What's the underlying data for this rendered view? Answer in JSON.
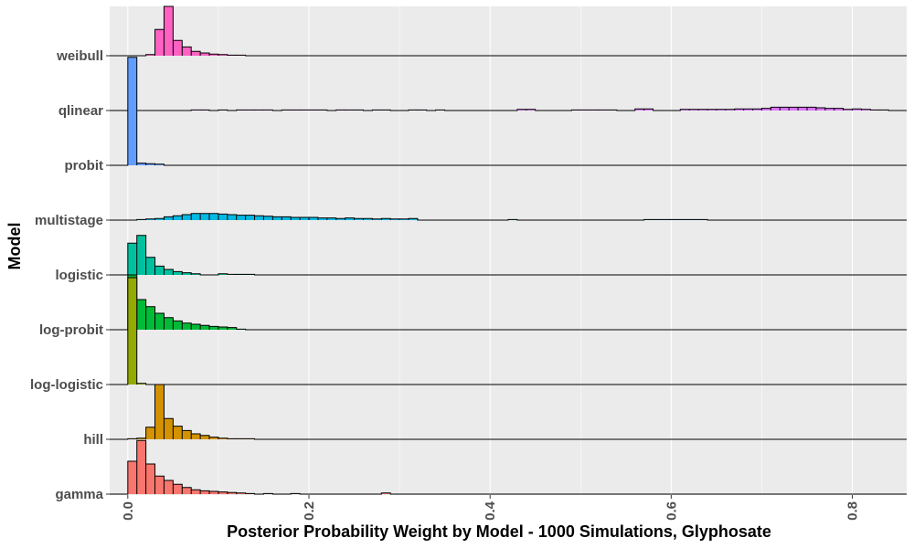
{
  "chart_data": {
    "type": "ridgeline-histogram",
    "xlabel": "Posterior Probability Weight by Model - 1000 Simulations, Glyphosate",
    "ylabel": "Model",
    "xlim": [
      -0.02,
      0.86
    ],
    "x_ticks": [
      0.0,
      0.2,
      0.4,
      0.6,
      0.8
    ],
    "x_tick_labels": [
      "0.0",
      "0.2",
      "0.4",
      "0.6",
      "0.8"
    ],
    "bin_width": 0.01,
    "grid": true,
    "background": "#EBEBEB",
    "gridline_color": "#FFFFFF",
    "categories": [
      "gamma",
      "hill",
      "log-logistic",
      "log-probit",
      "logistic",
      "multistage",
      "probit",
      "qlinear",
      "weibull"
    ],
    "series": [
      {
        "name": "gamma",
        "color": "#F8766D",
        "bins": [
          [
            0.0,
            0.6
          ],
          [
            0.01,
            0.98
          ],
          [
            0.02,
            0.55
          ],
          [
            0.03,
            0.33
          ],
          [
            0.04,
            0.25
          ],
          [
            0.05,
            0.18
          ],
          [
            0.06,
            0.12
          ],
          [
            0.07,
            0.08
          ],
          [
            0.08,
            0.06
          ],
          [
            0.09,
            0.05
          ],
          [
            0.1,
            0.04
          ],
          [
            0.11,
            0.03
          ],
          [
            0.12,
            0.02
          ],
          [
            0.13,
            0.01
          ],
          [
            0.15,
            0.01
          ],
          [
            0.18,
            0.01
          ],
          [
            0.28,
            0.02
          ]
        ]
      },
      {
        "name": "hill",
        "color": "#D39200",
        "bins": [
          [
            0.0,
            0.01
          ],
          [
            0.01,
            0.02
          ],
          [
            0.02,
            0.22
          ],
          [
            0.03,
            1.0
          ],
          [
            0.04,
            0.38
          ],
          [
            0.05,
            0.24
          ],
          [
            0.06,
            0.16
          ],
          [
            0.07,
            0.1
          ],
          [
            0.08,
            0.07
          ],
          [
            0.09,
            0.04
          ],
          [
            0.1,
            0.02
          ],
          [
            0.11,
            0.01
          ],
          [
            0.12,
            0.01
          ],
          [
            0.13,
            0.01
          ]
        ]
      },
      {
        "name": "log-logistic",
        "color": "#93AA00",
        "bins": [
          [
            0.0,
            1.95
          ],
          [
            0.01,
            0.02
          ]
        ]
      },
      {
        "name": "log-probit",
        "color": "#00BA38",
        "bins": [
          [
            0.0,
            1.0
          ],
          [
            0.01,
            0.55
          ],
          [
            0.02,
            0.42
          ],
          [
            0.03,
            0.3
          ],
          [
            0.04,
            0.22
          ],
          [
            0.05,
            0.16
          ],
          [
            0.06,
            0.12
          ],
          [
            0.07,
            0.1
          ],
          [
            0.08,
            0.08
          ],
          [
            0.09,
            0.06
          ],
          [
            0.1,
            0.05
          ],
          [
            0.11,
            0.04
          ],
          [
            0.12,
            0.01
          ]
        ]
      },
      {
        "name": "logistic",
        "color": "#00C19F",
        "bins": [
          [
            0.0,
            0.58
          ],
          [
            0.01,
            0.72
          ],
          [
            0.02,
            0.32
          ],
          [
            0.03,
            0.16
          ],
          [
            0.04,
            0.1
          ],
          [
            0.05,
            0.06
          ],
          [
            0.06,
            0.04
          ],
          [
            0.07,
            0.02
          ],
          [
            0.1,
            0.02
          ],
          [
            0.11,
            0.01
          ],
          [
            0.12,
            0.01
          ],
          [
            0.13,
            0.01
          ]
        ]
      },
      {
        "name": "multistage",
        "color": "#00B9E3",
        "bins": [
          [
            0.01,
            0.01
          ],
          [
            0.02,
            0.02
          ],
          [
            0.03,
            0.03
          ],
          [
            0.04,
            0.06
          ],
          [
            0.05,
            0.08
          ],
          [
            0.06,
            0.1
          ],
          [
            0.07,
            0.12
          ],
          [
            0.08,
            0.12
          ],
          [
            0.09,
            0.12
          ],
          [
            0.1,
            0.11
          ],
          [
            0.11,
            0.1
          ],
          [
            0.12,
            0.09
          ],
          [
            0.13,
            0.09
          ],
          [
            0.14,
            0.08
          ],
          [
            0.15,
            0.07
          ],
          [
            0.16,
            0.06
          ],
          [
            0.17,
            0.06
          ],
          [
            0.18,
            0.05
          ],
          [
            0.19,
            0.05
          ],
          [
            0.2,
            0.05
          ],
          [
            0.21,
            0.04
          ],
          [
            0.22,
            0.04
          ],
          [
            0.23,
            0.03
          ],
          [
            0.24,
            0.04
          ],
          [
            0.25,
            0.03
          ],
          [
            0.26,
            0.03
          ],
          [
            0.27,
            0.02
          ],
          [
            0.28,
            0.03
          ],
          [
            0.29,
            0.02
          ],
          [
            0.3,
            0.02
          ],
          [
            0.31,
            0.03
          ],
          [
            0.42,
            0.01
          ],
          [
            0.57,
            0.01
          ],
          [
            0.58,
            0.01
          ],
          [
            0.59,
            0.01
          ],
          [
            0.6,
            0.01
          ],
          [
            0.61,
            0.01
          ],
          [
            0.62,
            0.01
          ],
          [
            0.63,
            0.01
          ]
        ]
      },
      {
        "name": "probit",
        "color": "#619CFF",
        "bins": [
          [
            0.0,
            1.97
          ],
          [
            0.01,
            0.04
          ],
          [
            0.02,
            0.03
          ],
          [
            0.03,
            0.02
          ]
        ]
      },
      {
        "name": "qlinear",
        "color": "#DB72FB",
        "bins": [
          [
            0.07,
            0.01
          ],
          [
            0.08,
            0.01
          ],
          [
            0.1,
            0.01
          ],
          [
            0.12,
            0.01
          ],
          [
            0.13,
            0.01
          ],
          [
            0.14,
            0.01
          ],
          [
            0.15,
            0.01
          ],
          [
            0.17,
            0.01
          ],
          [
            0.18,
            0.01
          ],
          [
            0.19,
            0.01
          ],
          [
            0.2,
            0.01
          ],
          [
            0.21,
            0.01
          ],
          [
            0.23,
            0.01
          ],
          [
            0.24,
            0.01
          ],
          [
            0.25,
            0.01
          ],
          [
            0.27,
            0.01
          ],
          [
            0.28,
            0.01
          ],
          [
            0.31,
            0.01
          ],
          [
            0.32,
            0.01
          ],
          [
            0.34,
            0.01
          ],
          [
            0.43,
            0.02
          ],
          [
            0.44,
            0.02
          ],
          [
            0.49,
            0.01
          ],
          [
            0.5,
            0.01
          ],
          [
            0.51,
            0.01
          ],
          [
            0.52,
            0.01
          ],
          [
            0.53,
            0.01
          ],
          [
            0.56,
            0.03
          ],
          [
            0.57,
            0.03
          ],
          [
            0.61,
            0.02
          ],
          [
            0.62,
            0.02
          ],
          [
            0.63,
            0.02
          ],
          [
            0.64,
            0.02
          ],
          [
            0.65,
            0.02
          ],
          [
            0.66,
            0.02
          ],
          [
            0.67,
            0.03
          ],
          [
            0.68,
            0.03
          ],
          [
            0.69,
            0.03
          ],
          [
            0.7,
            0.04
          ],
          [
            0.71,
            0.06
          ],
          [
            0.72,
            0.06
          ],
          [
            0.73,
            0.06
          ],
          [
            0.74,
            0.06
          ],
          [
            0.75,
            0.06
          ],
          [
            0.76,
            0.05
          ],
          [
            0.77,
            0.04
          ],
          [
            0.78,
            0.04
          ],
          [
            0.79,
            0.02
          ],
          [
            0.8,
            0.03
          ],
          [
            0.81,
            0.02
          ],
          [
            0.82,
            0.01
          ],
          [
            0.83,
            0.01
          ]
        ]
      },
      {
        "name": "weibull",
        "color": "#FF61C3",
        "bins": [
          [
            0.02,
            0.02
          ],
          [
            0.03,
            0.48
          ],
          [
            0.04,
            0.9
          ],
          [
            0.05,
            0.28
          ],
          [
            0.06,
            0.16
          ],
          [
            0.07,
            0.08
          ],
          [
            0.08,
            0.05
          ],
          [
            0.09,
            0.03
          ],
          [
            0.1,
            0.02
          ],
          [
            0.11,
            0.01
          ],
          [
            0.12,
            0.01
          ]
        ]
      }
    ]
  }
}
